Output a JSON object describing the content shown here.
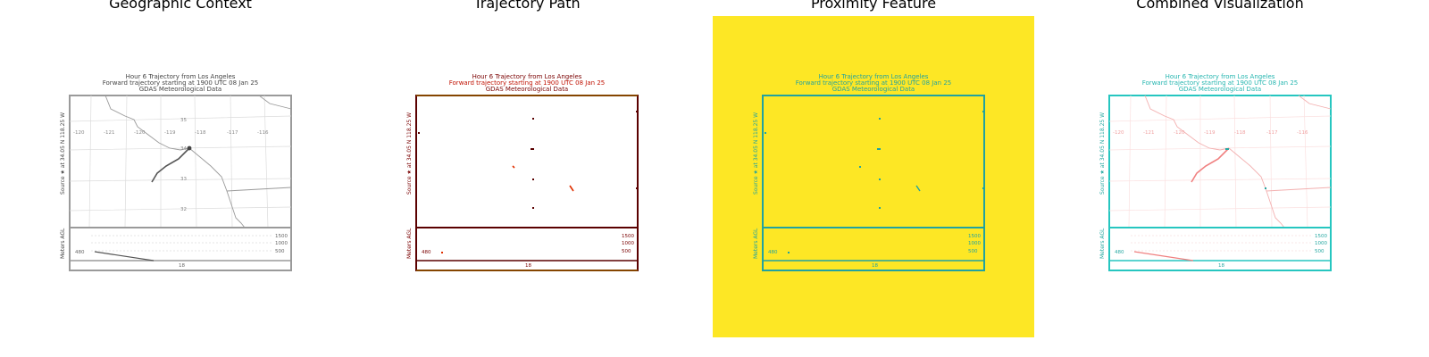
{
  "panels": [
    {
      "title": "Geographic Context",
      "style": "gray"
    },
    {
      "title": "Trajectory Path",
      "style": "path"
    },
    {
      "title": "Proximity Feature",
      "style": "proximity"
    },
    {
      "title": "Combined Visualization",
      "style": "combined"
    }
  ],
  "plot": {
    "title_line1": "Hour 6 Trajectory from Los Angeles",
    "title_line2": "Forward trajectory starting at 1900 UTC 08 Jan 25",
    "title_line3": "GDAS Meteorological Data",
    "y_side_label": "Source ★ at 34.05 N 118.25 W",
    "lon_labels": [
      "-120",
      "-121",
      "-120",
      "-119",
      "-118",
      "-117",
      "-116"
    ],
    "lat_labels": [
      "35",
      "34",
      "33",
      "32"
    ],
    "height_panel_label": "Meters AGL",
    "height_ticks": [
      "1500",
      "1000",
      "500"
    ],
    "start_height": "480",
    "time_tick": "18"
  },
  "colors": {
    "gray_line": "#7a7a7a",
    "gray_frame": "#9a9a9a",
    "path_dark": "#5a0000",
    "path_red": "#e03000",
    "path_text": "#7a0000",
    "frame_gold": "#b08a00",
    "proximity_bg": "#fde725",
    "teal": "#21a2a0",
    "combined_red": "#f08080",
    "combined_teal": "#26c6c0"
  }
}
